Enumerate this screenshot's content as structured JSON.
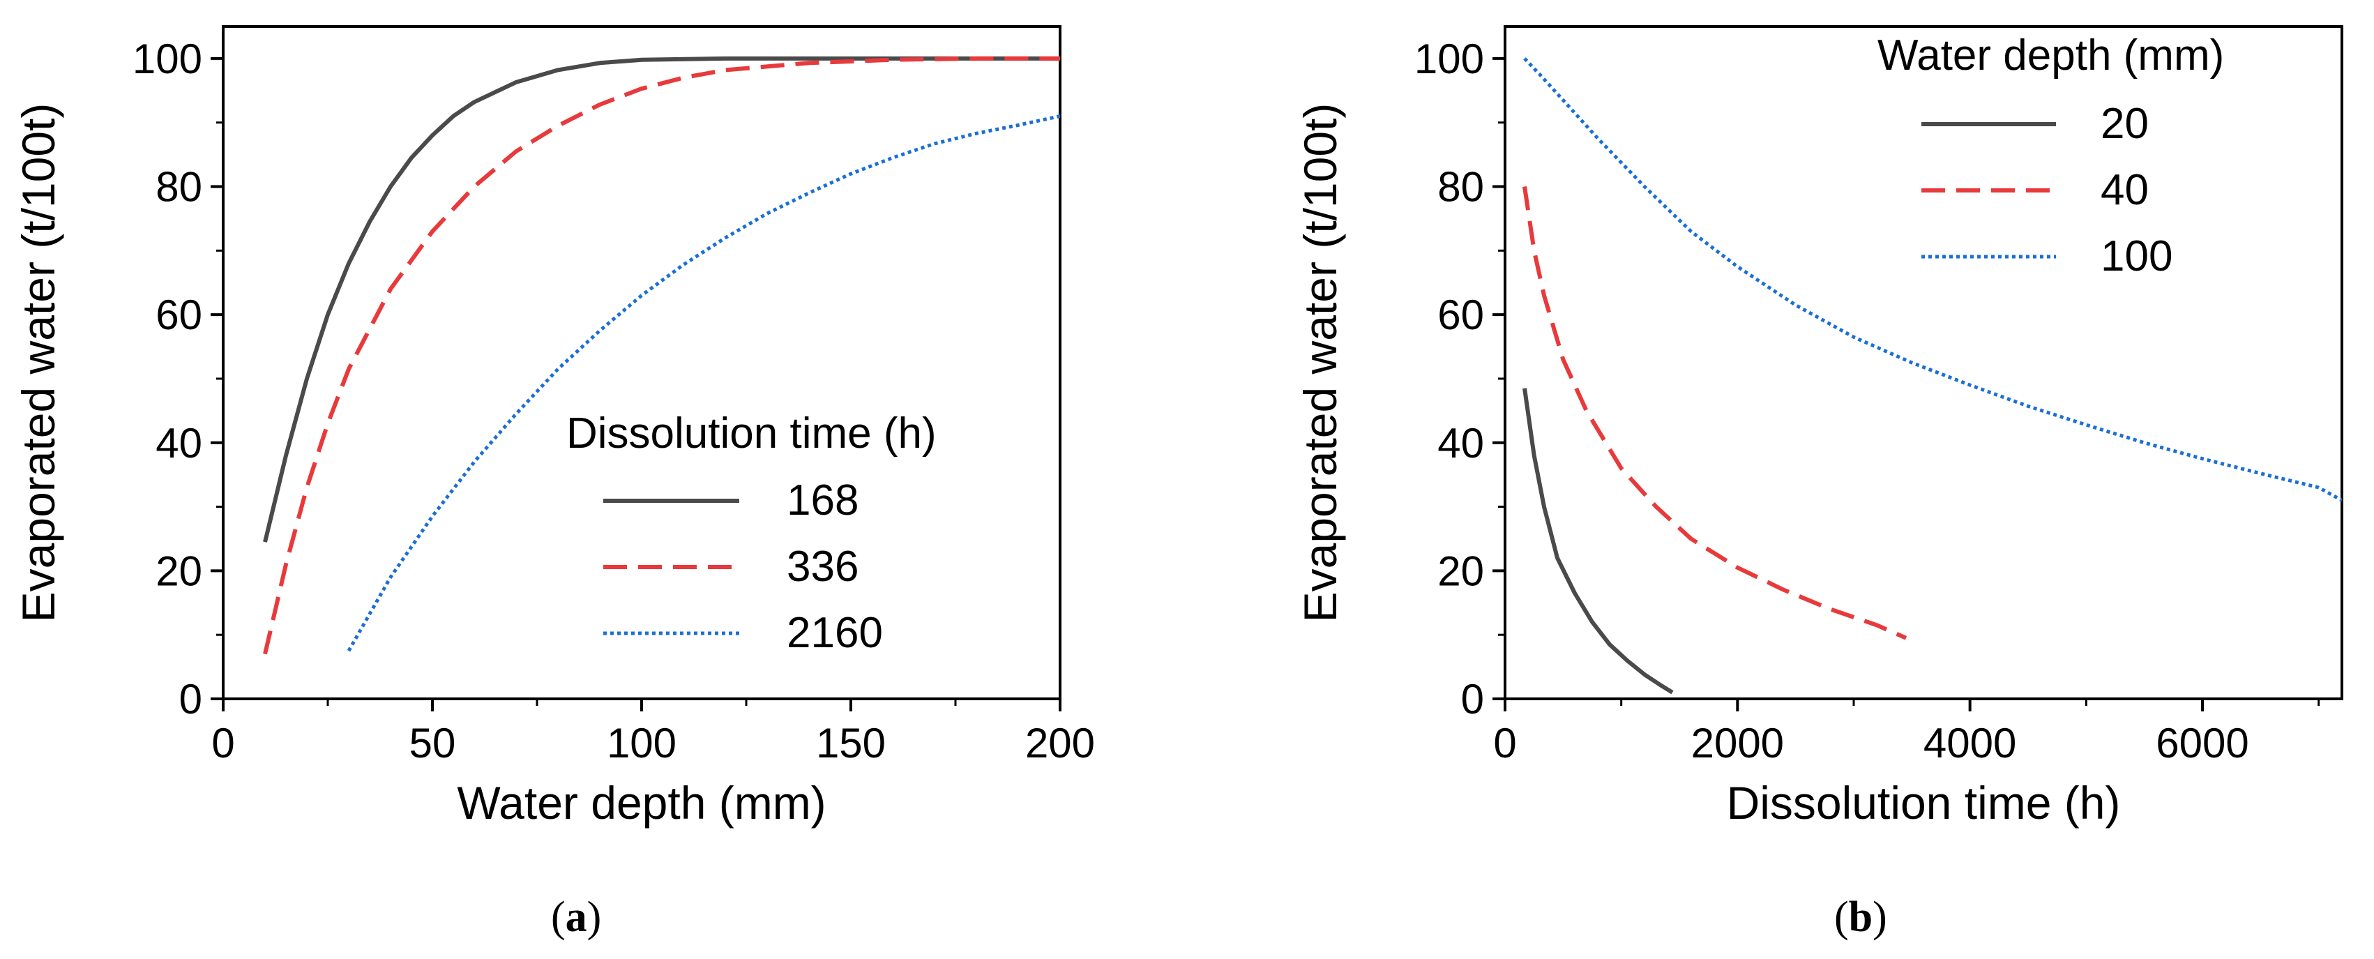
{
  "chart_data": [
    {
      "type": "line",
      "panel_label": "a",
      "xlabel": "Water depth  (mm)",
      "ylabel": "Evaporated water (t/100t)",
      "xlim": [
        0,
        200
      ],
      "ylim": [
        0,
        105
      ],
      "xticks": [
        0,
        50,
        100,
        150,
        200
      ],
      "yticks": [
        0,
        20,
        40,
        60,
        80,
        100
      ],
      "legend_title": "Dissolution time (h)",
      "legend_position": "lower-right",
      "series": [
        {
          "name": "168",
          "color": "#4a4a4a",
          "style": "solid",
          "x": [
            10,
            15,
            20,
            25,
            30,
            35,
            40,
            45,
            50,
            55,
            60,
            70,
            80,
            90,
            100,
            120,
            140,
            160,
            180,
            200
          ],
          "y": [
            24.5,
            38,
            50,
            60,
            68,
            74.5,
            80,
            84.5,
            88,
            91,
            93.2,
            96.3,
            98.2,
            99.3,
            99.8,
            100,
            100,
            100,
            100,
            100
          ]
        },
        {
          "name": "336",
          "color": "#e8393b",
          "style": "dashed",
          "x": [
            10,
            15,
            20,
            25,
            30,
            40,
            50,
            60,
            70,
            80,
            90,
            100,
            110,
            120,
            140,
            160,
            180,
            200
          ],
          "y": [
            7,
            21,
            33,
            43,
            51.5,
            64,
            73,
            80,
            85.5,
            89.5,
            92.8,
            95.3,
            97,
            98.2,
            99.3,
            99.8,
            100,
            100
          ]
        },
        {
          "name": "2160",
          "color": "#1a6fd6",
          "style": "dotted",
          "x": [
            30,
            40,
            50,
            60,
            70,
            80,
            90,
            100,
            110,
            120,
            130,
            140,
            150,
            160,
            170,
            180,
            190,
            200
          ],
          "y": [
            7.5,
            19,
            28.5,
            37,
            44.5,
            51.5,
            57.5,
            63,
            67.8,
            72,
            75.8,
            79,
            82,
            84.5,
            86.7,
            88.3,
            89.6,
            91
          ]
        }
      ]
    },
    {
      "type": "line",
      "panel_label": "b",
      "xlabel": "Dissolution time (h)",
      "ylabel": "Evaporated water (t/100t)",
      "xlim": [
        0,
        7200
      ],
      "ylim": [
        0,
        105
      ],
      "xticks": [
        0,
        2000,
        4000,
        6000
      ],
      "yticks": [
        0,
        20,
        40,
        60,
        80,
        100
      ],
      "legend_title": "Water depth (mm)",
      "legend_position": "top-right",
      "series": [
        {
          "name": "20",
          "color": "#4a4a4a",
          "style": "solid",
          "x": [
            168,
            250,
            336,
            450,
            600,
            750,
            900,
            1050,
            1200,
            1350,
            1440
          ],
          "y": [
            48.5,
            38,
            30,
            22,
            16.5,
            12,
            8.5,
            6,
            3.8,
            2,
            1
          ]
        },
        {
          "name": "40",
          "color": "#e8393b",
          "style": "dashed",
          "x": [
            168,
            250,
            336,
            500,
            700,
            1000,
            1300,
            1600,
            2000,
            2400,
            2800,
            3200,
            3450
          ],
          "y": [
            80,
            70,
            63,
            53,
            45,
            36,
            30,
            25,
            20.5,
            17,
            14,
            11.5,
            9.5
          ]
        },
        {
          "name": "100",
          "color": "#1a6fd6",
          "style": "dotted",
          "x": [
            168,
            300,
            500,
            800,
            1200,
            1600,
            2000,
            2500,
            3000,
            3500,
            4000,
            4500,
            5000,
            5500,
            6000,
            6500,
            7000,
            7200
          ],
          "y": [
            100,
            97.5,
            93.5,
            87.5,
            80,
            73,
            67.5,
            61.5,
            56.5,
            52.5,
            49,
            45.7,
            42.8,
            40,
            37.5,
            35.2,
            33,
            31
          ]
        }
      ]
    }
  ]
}
